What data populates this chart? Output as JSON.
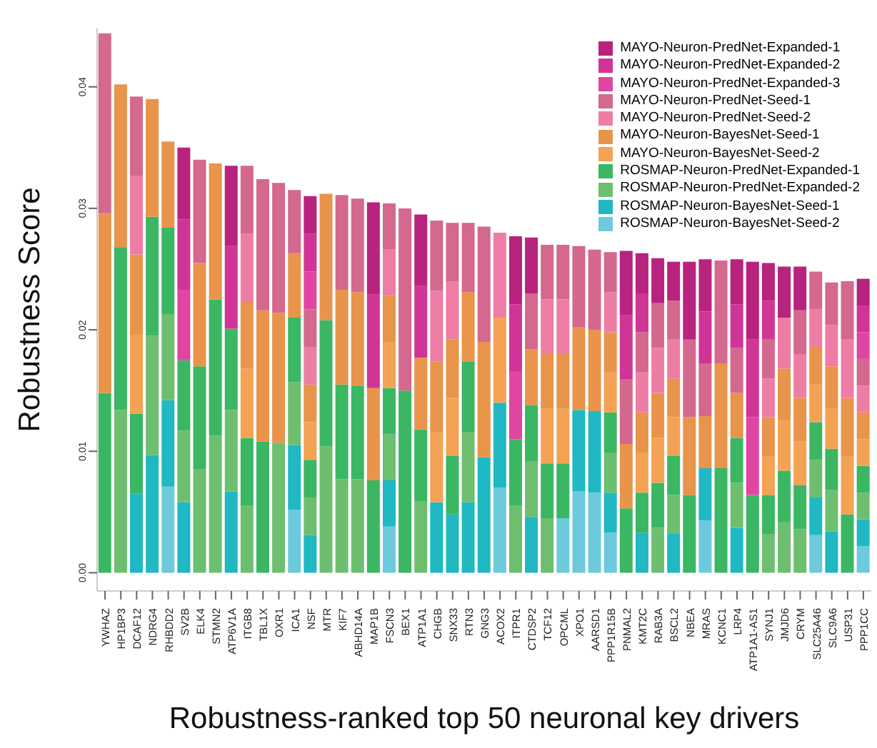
{
  "chart_data": {
    "type": "bar",
    "stacked": true,
    "xlabel": "Robustness-ranked top 50 neuronal key drivers",
    "ylabel": "Robustness Score",
    "categories": [
      "YWHAZ",
      "HP1BP3",
      "DCAF12",
      "NDRG4",
      "RHBDD2",
      "SV2B",
      "ELK4",
      "STMN2",
      "ATP6V1A",
      "ITGB8",
      "TBL1X",
      "OXR1",
      "ICA1",
      "NSF",
      "MTR",
      "KIF7",
      "ABHD14A",
      "MAP1B",
      "FSCN3",
      "BEX1",
      "ATP1A1",
      "CHGB",
      "SNX33",
      "RTN3",
      "GNG3",
      "ACOX2",
      "ITPR1",
      "CTDSP2",
      "TCF12",
      "OPCML",
      "XPO1",
      "AARSD1",
      "PPP1R15B",
      "PNMAL2",
      "KMT2C",
      "RAB3A",
      "BSCL2",
      "NBEA",
      "MRAS",
      "KCNC1",
      "LRP4",
      "ATP1A1-AS1",
      "SYNJ1",
      "JMJD6",
      "CRYM",
      "SLC25A46",
      "SLC9A6",
      "USP31",
      "PPP1CC"
    ],
    "ylim": [
      -0.0015,
      0.0448
    ],
    "yticks": [
      {
        "value": 0,
        "label": "0.00"
      },
      {
        "value": 0.01,
        "label": "0.01"
      },
      {
        "value": 0.02,
        "label": "0.02"
      },
      {
        "value": 0.03,
        "label": "0.03"
      },
      {
        "value": 0.04,
        "label": "0.04"
      }
    ],
    "legend": "top right",
    "series": [
      {
        "name": "ROSMAP-Neuron-BayesNet-Seed-2",
        "color": "#6ccadc",
        "values": [
          0,
          0,
          0,
          0,
          0.0071,
          0,
          0,
          0,
          0,
          0,
          0,
          0,
          0.0052,
          0,
          0,
          0,
          0,
          0,
          0.0038,
          0,
          0,
          0,
          0,
          0,
          0,
          0.007,
          0,
          0,
          0,
          0.0045,
          0.0067,
          0.0066,
          0.0033,
          0,
          0,
          0,
          0,
          0,
          0.0043,
          0,
          0,
          0,
          0,
          0,
          0,
          0.0031,
          0,
          0,
          0.0022
        ]
      },
      {
        "name": "ROSMAP-Neuron-BayesNet-Seed-1",
        "color": "#1fb8c3",
        "values": [
          0,
          0,
          0.0065,
          0.0097,
          0.0071,
          0.0058,
          0,
          0,
          0.0067,
          0,
          0,
          0,
          0.0053,
          0.0031,
          0,
          0,
          0,
          0,
          0.0038,
          0,
          0,
          0.0058,
          0.0048,
          0.0058,
          0.0095,
          0.007,
          0,
          0.0046,
          0,
          0,
          0.0067,
          0.0067,
          0.0033,
          0,
          0.0033,
          0,
          0.0032,
          0,
          0.0043,
          0,
          0.0037,
          0,
          0,
          0,
          0,
          0.0031,
          0.0034,
          0,
          0.0022
        ]
      },
      {
        "name": "ROSMAP-Neuron-PredNet-Expanded-2",
        "color": "#6dbf6f",
        "values": [
          0,
          0.0134,
          0,
          0.0098,
          0.0071,
          0.0059,
          0.0085,
          0.0113,
          0.0067,
          0.0055,
          0,
          0.0107,
          0.0052,
          0.0031,
          0.0104,
          0.0077,
          0.0077,
          0,
          0.0038,
          0,
          0.0059,
          0,
          0,
          0.0058,
          0,
          0,
          0.0055,
          0.0046,
          0.0045,
          0,
          0,
          0,
          0.0033,
          0,
          0,
          0.0037,
          0.0032,
          0,
          0,
          0,
          0.0037,
          0,
          0.0032,
          0.0042,
          0.0036,
          0.0031,
          0.0034,
          0,
          0.0022
        ]
      },
      {
        "name": "ROSMAP-Neuron-PredNet-Expanded-1",
        "color": "#3bb662",
        "values": [
          0.0148,
          0.0134,
          0.0066,
          0.0098,
          0.0071,
          0.0058,
          0.0085,
          0.0112,
          0.0067,
          0.0056,
          0.0108,
          0,
          0.0053,
          0.0031,
          0.0104,
          0.0078,
          0.0077,
          0.0076,
          0.0038,
          0.015,
          0.0059,
          0,
          0.0048,
          0.0058,
          0,
          0,
          0.0055,
          0.0046,
          0.0045,
          0.0045,
          0,
          0,
          0.0033,
          0.0053,
          0.0033,
          0.0037,
          0.0032,
          0.0064,
          0,
          0.0086,
          0.0037,
          0.0064,
          0.0032,
          0.0042,
          0.0036,
          0.0031,
          0.0034,
          0.0048,
          0.0022
        ]
      },
      {
        "name": "MAYO-Neuron-BayesNet-Seed-2",
        "color": "#f4a253",
        "values": [
          0,
          0,
          0.0065,
          0,
          0,
          0,
          0,
          0,
          0,
          0.0057,
          0,
          0,
          0,
          0.0031,
          0,
          0,
          0,
          0,
          0.0038,
          0,
          0,
          0.0058,
          0.0048,
          0,
          0,
          0.007,
          0,
          0,
          0.0045,
          0.0045,
          0,
          0,
          0.0033,
          0,
          0.0033,
          0.0037,
          0.0032,
          0,
          0,
          0,
          0,
          0,
          0.0032,
          0.0042,
          0.0036,
          0.0031,
          0.0034,
          0.0048,
          0.0022
        ]
      },
      {
        "name": "MAYO-Neuron-BayesNet-Seed-1",
        "color": "#e8944a",
        "values": [
          0.0148,
          0.0134,
          0.0066,
          0.0097,
          0.0071,
          0,
          0.0085,
          0.0112,
          0,
          0.0055,
          0.0108,
          0.0107,
          0.0053,
          0.0031,
          0.0104,
          0.0078,
          0.0077,
          0.0076,
          0.0038,
          0,
          0.0059,
          0.0058,
          0.0048,
          0.0057,
          0.0095,
          0,
          0,
          0.0046,
          0.0045,
          0.0045,
          0.0068,
          0.0067,
          0.0033,
          0.0053,
          0.0033,
          0.0037,
          0.0032,
          0.0064,
          0.0043,
          0.0086,
          0.0037,
          0,
          0.0032,
          0.0042,
          0.0036,
          0.0031,
          0.0034,
          0.0048,
          0.0022
        ]
      },
      {
        "name": "MAYO-Neuron-PredNet-Seed-2",
        "color": "#ee7da6",
        "values": [
          0,
          0,
          0.0065,
          0,
          0,
          0,
          0,
          0,
          0,
          0.0056,
          0,
          0,
          0,
          0.0031,
          0,
          0,
          0,
          0,
          0.0038,
          0,
          0,
          0.0058,
          0.0048,
          0,
          0,
          0.007,
          0,
          0,
          0.0045,
          0.0045,
          0,
          0,
          0.0033,
          0,
          0.0033,
          0.0037,
          0.0032,
          0,
          0,
          0,
          0,
          0,
          0.0032,
          0.0042,
          0.0036,
          0.0031,
          0.0034,
          0.0048,
          0.0022
        ]
      },
      {
        "name": "MAYO-Neuron-PredNet-Seed-1",
        "color": "#d4688f",
        "values": [
          0.0148,
          0,
          0.0065,
          0,
          0,
          0,
          0.0085,
          0,
          0,
          0.0056,
          0.0108,
          0.0107,
          0.0052,
          0.0031,
          0,
          0.0078,
          0.0077,
          0,
          0.0038,
          0.015,
          0,
          0.0058,
          0.0048,
          0.0057,
          0.0095,
          0,
          0,
          0.0046,
          0.0045,
          0.0045,
          0.0067,
          0.0066,
          0.0033,
          0.0053,
          0.0033,
          0.0037,
          0.0032,
          0.0064,
          0.0043,
          0.0085,
          0.0037,
          0,
          0.0032,
          0,
          0.0036,
          0.0031,
          0.0035,
          0.0048,
          0.0022
        ]
      },
      {
        "name": "MAYO-Neuron-PredNet-Expanded-3",
        "color": "#e045a2",
        "values": [
          0,
          0,
          0,
          0,
          0,
          0.0058,
          0,
          0,
          0,
          0,
          0,
          0,
          0,
          0.0031,
          0,
          0,
          0,
          0,
          0,
          0,
          0,
          0,
          0,
          0,
          0,
          0,
          0.0056,
          0,
          0,
          0,
          0,
          0,
          0,
          0,
          0,
          0,
          0,
          0,
          0,
          0,
          0,
          0.0064,
          0,
          0,
          0,
          0,
          0,
          0,
          0.0022
        ]
      },
      {
        "name": "MAYO-Neuron-PredNet-Expanded-2",
        "color": "#d13497",
        "values": [
          0,
          0,
          0,
          0,
          0,
          0.0058,
          0,
          0,
          0.0068,
          0,
          0,
          0,
          0,
          0.0031,
          0,
          0,
          0,
          0.0077,
          0,
          0,
          0.0059,
          0,
          0,
          0,
          0,
          0,
          0.0055,
          0,
          0,
          0,
          0,
          0,
          0,
          0.0053,
          0.0032,
          0,
          0,
          0,
          0.0043,
          0,
          0.0036,
          0.0064,
          0.0032,
          0,
          0,
          0,
          0,
          0,
          0.0022
        ]
      },
      {
        "name": "MAYO-Neuron-PredNet-Expanded-1",
        "color": "#b8237e",
        "values": [
          0,
          0,
          0,
          0,
          0,
          0.0059,
          0,
          0,
          0.0066,
          0,
          0,
          0,
          0,
          0.0031,
          0,
          0,
          0,
          0.0076,
          0,
          0,
          0.0059,
          0,
          0,
          0,
          0,
          0,
          0.0056,
          0.0046,
          0,
          0,
          0,
          0,
          0,
          0.0053,
          0.0033,
          0.0037,
          0.0032,
          0.0064,
          0.0043,
          0,
          0.0037,
          0.0064,
          0.0031,
          0.0042,
          0.0036,
          0,
          0,
          0,
          0.0022
        ]
      }
    ]
  }
}
